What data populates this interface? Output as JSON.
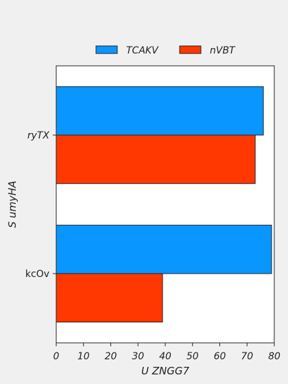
{
  "chart_data": {
    "type": "bar",
    "orientation": "horizontal",
    "categories": [
      "ryTX",
      "kcOv"
    ],
    "category_label_italic": [
      true,
      false
    ],
    "series": [
      {
        "name": "TCAKV",
        "values": [
          76,
          79
        ],
        "color": "#0a96ff"
      },
      {
        "name": "nVBT",
        "values": [
          73,
          39
        ],
        "color": "#ff3700"
      }
    ],
    "xlabel": "U  ZNGG7",
    "ylabel": "S  umyHA",
    "xlim": [
      0,
      80
    ],
    "xticks": [
      "0",
      "10",
      "20",
      "30",
      "40",
      "50",
      "60",
      "70",
      "80"
    ],
    "grid": false,
    "legend_position": "top-center"
  }
}
